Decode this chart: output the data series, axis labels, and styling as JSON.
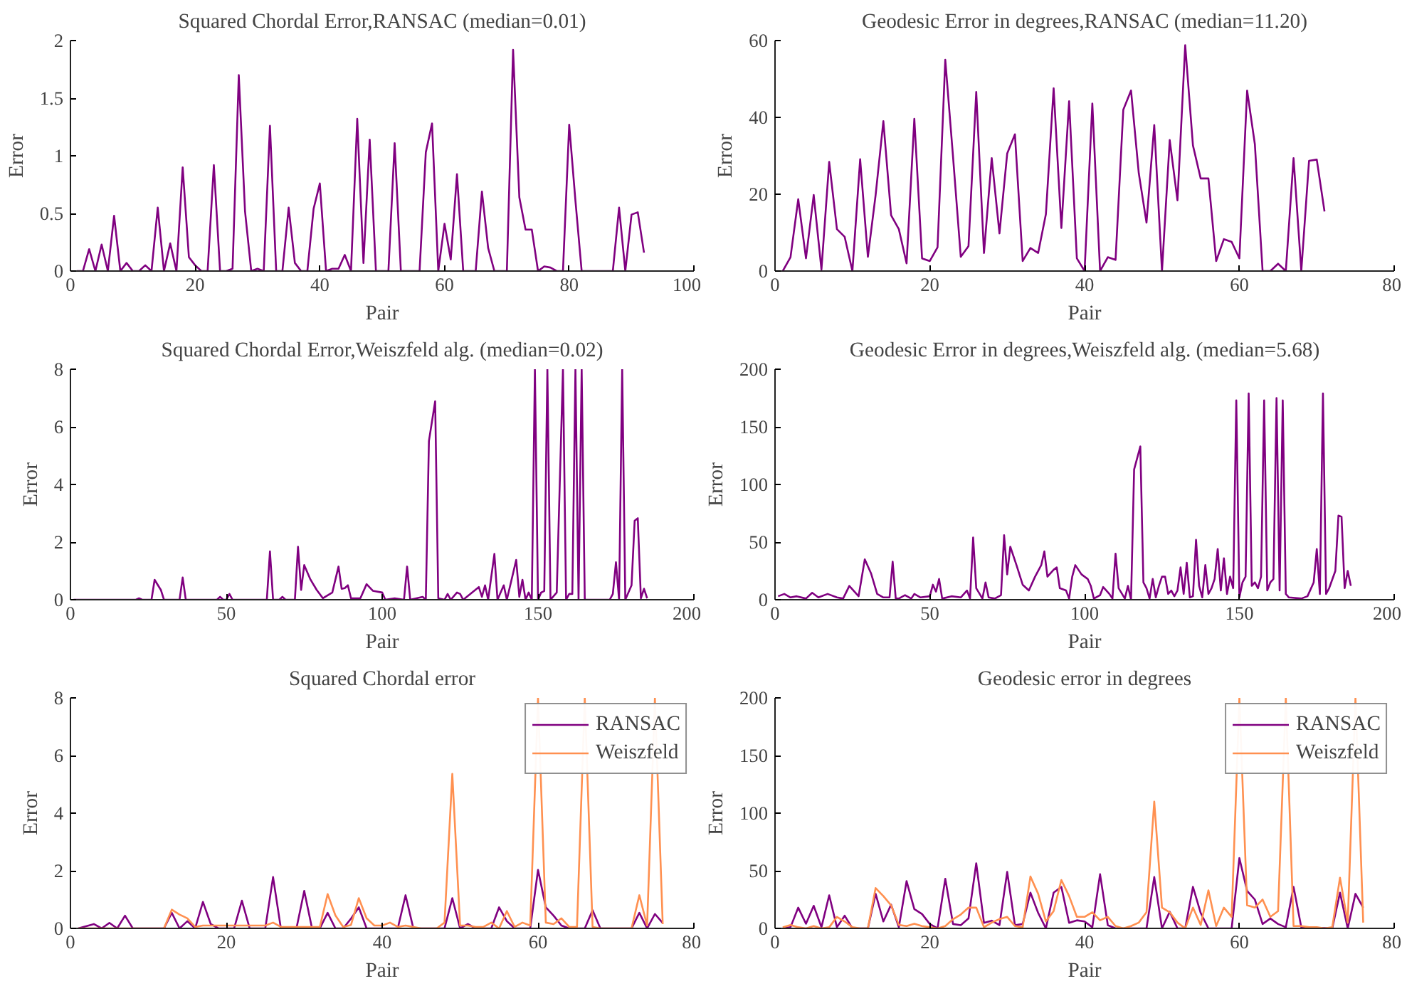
{
  "chart_data": [
    {
      "type": "line",
      "title": "Squared Chordal Error,RANSAC (median=0.01)",
      "xlabel": "Pair",
      "ylabel": "Error",
      "xlim": [
        0,
        100
      ],
      "ylim": [
        0,
        2
      ],
      "xticks": [
        0,
        20,
        40,
        60,
        80,
        100
      ],
      "yticks": [
        0,
        0.5,
        1,
        1.5,
        2
      ],
      "series": [
        {
          "color": "#800080",
          "x": [
            1,
            2,
            3,
            4,
            5,
            6,
            7,
            8,
            9,
            10,
            11,
            12,
            13,
            14,
            15,
            16,
            17,
            18,
            19,
            20,
            21,
            22,
            23,
            24,
            25,
            26,
            27,
            28,
            29,
            30,
            31,
            32,
            33,
            34,
            35,
            36,
            37,
            38,
            39,
            40,
            41,
            42,
            43,
            44,
            45,
            46,
            47,
            48,
            49,
            50,
            51,
            52,
            53,
            54,
            55,
            56,
            57,
            58,
            59,
            60,
            61,
            62,
            63,
            64,
            65,
            66,
            67,
            68,
            69,
            70,
            71,
            72,
            73,
            74,
            75,
            76,
            77,
            78,
            79,
            80,
            81,
            82,
            83,
            84,
            85,
            86,
            87,
            88,
            89,
            90,
            91,
            92
          ],
          "values": [
            0,
            0,
            0.19,
            0,
            0.23,
            0,
            0.48,
            0,
            0.07,
            0,
            0,
            0.05,
            0,
            0.55,
            0,
            0.24,
            0,
            0.9,
            0.12,
            0.05,
            0,
            0,
            0.92,
            0,
            0,
            0.02,
            1.7,
            0.52,
            0,
            0.02,
            0,
            1.26,
            0,
            0,
            0.55,
            0.07,
            0,
            0,
            0.54,
            0.76,
            0,
            0.02,
            0.02,
            0.14,
            0,
            1.32,
            0.07,
            1.14,
            0,
            0,
            0,
            1.11,
            0,
            0,
            0,
            0,
            1.03,
            1.28,
            0,
            0.41,
            0.1,
            0.84,
            0,
            0,
            0,
            0.69,
            0.2,
            0,
            0,
            0,
            1.92,
            0.64,
            0.36,
            0.36,
            0,
            0.04,
            0.03,
            0,
            0,
            1.27,
            0.61,
            0,
            0,
            0,
            0,
            0,
            0,
            0.55,
            0,
            0.49,
            0.51,
            0.16
          ]
        }
      ]
    },
    {
      "type": "line",
      "title": "Geodesic Error in degrees,RANSAC (median=11.20)",
      "xlabel": "Pair",
      "ylabel": "Error",
      "xlim": [
        0,
        80
      ],
      "ylim": [
        0,
        60
      ],
      "xticks": [
        0,
        20,
        40,
        60,
        80
      ],
      "yticks": [
        0,
        20,
        40,
        60
      ],
      "series": [
        {
          "color": "#800080",
          "x": [
            1,
            2,
            3,
            4,
            5,
            6,
            7,
            8,
            9,
            10,
            11,
            12,
            13,
            14,
            15,
            16,
            17,
            18,
            19,
            20,
            21,
            22,
            23,
            24,
            25,
            26,
            27,
            28,
            29,
            30,
            31,
            32,
            33,
            34,
            35,
            36,
            37,
            38,
            39,
            40,
            41,
            42,
            43,
            44,
            45,
            46,
            47,
            48,
            49,
            50,
            51,
            52,
            53,
            54,
            55,
            56,
            57,
            58,
            59,
            60,
            61,
            62,
            63,
            64,
            65,
            66,
            67,
            68,
            69,
            70,
            71
          ],
          "values": [
            0,
            3.6,
            18.7,
            3.3,
            19.8,
            0.4,
            28.4,
            10.9,
            8.9,
            0,
            29.1,
            3.7,
            19.8,
            39,
            14.5,
            10.9,
            2,
            39.6,
            3.3,
            2.6,
            6.2,
            55,
            29.8,
            3.7,
            6.5,
            46.6,
            4.7,
            29.4,
            9.8,
            30.6,
            35.6,
            2.6,
            6,
            4.7,
            14.8,
            47.6,
            11.2,
            44.2,
            3.3,
            0,
            43.6,
            0,
            3.6,
            2.9,
            42,
            47,
            25.5,
            12.6,
            38,
            0,
            34.1,
            18.4,
            58.8,
            32.7,
            24.1,
            24.1,
            2.6,
            8.3,
            7.6,
            3.3,
            47,
            33,
            0,
            0,
            1.9,
            0,
            29.4,
            0,
            28.7,
            29,
            15.5
          ]
        }
      ]
    },
    {
      "type": "line",
      "title": "Squared Chordal Error,Weiszfeld alg. (median=0.02)",
      "xlabel": "Pair",
      "ylabel": "Error",
      "xlim": [
        0,
        200
      ],
      "ylim": [
        0,
        8
      ],
      "xticks": [
        0,
        50,
        100,
        150,
        200
      ],
      "yticks": [
        0,
        2,
        4,
        6,
        8
      ],
      "series": [
        {
          "color": "#800080",
          "x": [
            1,
            21,
            22,
            23,
            26,
            27,
            29,
            30,
            35,
            36,
            37,
            47,
            48,
            49,
            50,
            51,
            52,
            63,
            64,
            65,
            67,
            68,
            69,
            72,
            73,
            74,
            75,
            77,
            79,
            81,
            84,
            86,
            87,
            88,
            89,
            90,
            93,
            95,
            97,
            100,
            101,
            104,
            107,
            108,
            109,
            113,
            114,
            115,
            117,
            118,
            120,
            121,
            122,
            124,
            125,
            126,
            131,
            132,
            133,
            134,
            136,
            137,
            139,
            140,
            143,
            144,
            145,
            146,
            147,
            148,
            149,
            150,
            151,
            152,
            153,
            154,
            156,
            158,
            159,
            160,
            161,
            162,
            163,
            164,
            165,
            173,
            174,
            175,
            176,
            177,
            178,
            180,
            181,
            182,
            183,
            184,
            185
          ],
          "values": [
            0,
            0,
            0.05,
            0,
            0,
            0.69,
            0.34,
            0,
            0,
            0.77,
            0,
            0,
            0.1,
            0,
            0,
            0.2,
            0,
            0,
            1.68,
            0,
            0,
            0.1,
            0,
            0,
            1.84,
            0.34,
            1.2,
            0.7,
            0.34,
            0.05,
            0.25,
            1.15,
            0.38,
            0.4,
            0.5,
            0.05,
            0.05,
            0.54,
            0.31,
            0.25,
            0,
            0.05,
            0,
            1.15,
            0,
            0.1,
            0,
            5.51,
            6.89,
            0.05,
            0,
            0.2,
            0,
            0.25,
            0.2,
            0,
            0.44,
            0.1,
            0.5,
            0,
            1.59,
            0,
            0.5,
            0,
            1.38,
            0.1,
            0.69,
            0,
            0.25,
            0,
            8,
            0,
            0.25,
            0.3,
            8,
            0,
            0.25,
            8,
            0,
            0.2,
            0.2,
            8,
            0,
            8,
            0,
            0,
            0.2,
            1.3,
            0,
            8,
            0,
            0.5,
            2.74,
            2.83,
            0.05,
            0.38,
            0.05
          ]
        }
      ]
    },
    {
      "type": "line",
      "title": "Geodesic Error in degrees,Weiszfeld alg. (median=5.68)",
      "xlabel": "Pair",
      "ylabel": "Error",
      "xlim": [
        0,
        200
      ],
      "ylim": [
        0,
        200
      ],
      "xticks": [
        0,
        50,
        100,
        150,
        200
      ],
      "yticks": [
        0,
        50,
        100,
        150,
        200
      ],
      "series": [
        {
          "color": "#800080",
          "x": [
            1,
            3,
            5,
            7,
            10,
            12,
            14,
            17,
            20,
            22,
            24,
            27,
            29,
            31,
            33,
            35,
            37,
            38,
            39,
            40,
            42,
            44,
            45,
            47,
            50,
            51,
            52,
            53,
            54,
            57,
            60,
            62,
            63,
            64,
            65,
            67,
            68,
            69,
            71,
            73,
            74,
            75,
            76,
            78,
            80,
            82,
            84,
            86,
            87,
            88,
            90,
            91,
            92,
            94,
            95,
            96,
            97,
            99,
            101,
            102,
            103,
            105,
            106,
            108,
            109,
            110,
            111,
            113,
            114,
            115,
            116,
            118,
            119,
            120,
            121,
            122,
            123,
            124,
            125,
            126,
            127,
            128,
            129,
            130,
            131,
            132,
            133,
            134,
            135,
            136,
            137,
            138,
            139,
            140,
            141,
            142,
            143,
            144,
            145,
            146,
            147,
            148,
            149,
            150,
            151,
            152,
            153,
            154,
            155,
            156,
            157,
            158,
            159,
            160,
            161,
            162,
            163,
            164,
            165,
            166,
            170,
            172,
            174,
            175,
            176,
            177,
            178,
            179,
            181,
            182,
            183,
            184,
            185,
            186
          ],
          "values": [
            3,
            5,
            2,
            3,
            1,
            6,
            2,
            5,
            2,
            1,
            12,
            3,
            35,
            23,
            5,
            2,
            2,
            33,
            1,
            1,
            4,
            1,
            5,
            2,
            3,
            13,
            7,
            18,
            1,
            3,
            2,
            8,
            1,
            54,
            10,
            1,
            15,
            2,
            1,
            4,
            56,
            22,
            46,
            30,
            13,
            8,
            20,
            30,
            42,
            20,
            26,
            28,
            10,
            8,
            1,
            20,
            30,
            22,
            18,
            12,
            1,
            4,
            11,
            5,
            1,
            40,
            10,
            1,
            12,
            0,
            113,
            133,
            15,
            10,
            1,
            18,
            2,
            12,
            20,
            20,
            5,
            8,
            3,
            8,
            28,
            5,
            32,
            2,
            3,
            52,
            12,
            2,
            30,
            5,
            10,
            18,
            44,
            8,
            36,
            5,
            20,
            10,
            173,
            2,
            15,
            20,
            179,
            12,
            15,
            10,
            20,
            173,
            8,
            15,
            18,
            175,
            8,
            173,
            5,
            2,
            1,
            3,
            15,
            44,
            5,
            179,
            5,
            10,
            25,
            73,
            72,
            10,
            25,
            12
          ]
        }
      ]
    },
    {
      "type": "line",
      "title": "Squared Chordal error",
      "xlabel": "Pair",
      "ylabel": "Error",
      "xlim": [
        0,
        80
      ],
      "ylim": [
        0,
        8
      ],
      "xticks": [
        0,
        20,
        40,
        60,
        80
      ],
      "yticks": [
        0,
        2,
        4,
        6,
        8
      ],
      "legend": "top right",
      "series": [
        {
          "name": "RANSAC",
          "color": "#800080",
          "x": [
            1,
            3,
            4,
            5,
            6,
            7,
            8,
            9,
            12,
            13,
            14,
            15,
            16,
            17,
            18,
            19,
            21,
            22,
            23,
            25,
            26,
            27,
            29,
            30,
            31,
            32,
            33,
            34,
            35,
            36,
            37,
            38,
            39,
            42,
            43,
            44,
            48,
            49,
            50,
            51,
            52,
            54,
            55,
            56,
            57,
            59,
            60,
            61,
            62,
            63,
            64,
            66,
            67,
            68,
            72,
            73,
            74,
            75,
            76
          ],
          "values": [
            0,
            0.15,
            0,
            0.19,
            0,
            0.44,
            0,
            0,
            0,
            0.54,
            0,
            0.25,
            0,
            0.92,
            0.15,
            0,
            0,
            0.96,
            0,
            0,
            1.78,
            0,
            0,
            1.3,
            0,
            0,
            0.54,
            0,
            0,
            0.34,
            0.73,
            0,
            0,
            0,
            1.15,
            0,
            0,
            1.05,
            0,
            0.15,
            0,
            0,
            0.73,
            0.25,
            0,
            0,
            2.03,
            0.73,
            0.44,
            0.1,
            0,
            0,
            0.63,
            0,
            0,
            0.54,
            0,
            0.5,
            0.19
          ]
        },
        {
          "name": "Weiszfeld",
          "color": "#ff9050",
          "x": [
            1,
            12,
            13,
            14,
            15,
            16,
            17,
            25,
            26,
            27,
            32,
            33,
            34,
            35,
            36,
            37,
            38,
            39,
            40,
            41,
            42,
            43,
            44,
            45,
            47,
            48,
            49,
            50,
            51,
            52,
            53,
            54,
            55,
            56,
            57,
            58,
            59,
            60,
            61,
            62,
            63,
            64,
            65,
            66,
            67,
            68,
            72,
            73,
            74,
            75,
            76
          ],
          "values": [
            0,
            0,
            0.65,
            0.48,
            0.35,
            0.05,
            0.1,
            0.1,
            0.2,
            0.05,
            0.05,
            1.19,
            0.45,
            0.05,
            0.12,
            1.05,
            0.35,
            0.1,
            0.1,
            0.2,
            0.05,
            0.1,
            0.05,
            0,
            0,
            0.2,
            5.36,
            0.1,
            0.1,
            0.05,
            0.05,
            0.2,
            0,
            0.6,
            0.05,
            0.2,
            0.1,
            8,
            0.2,
            0.15,
            0.35,
            0.05,
            0.05,
            8,
            0.05,
            0,
            0,
            1.15,
            0.1,
            8,
            0.15
          ]
        }
      ]
    },
    {
      "type": "line",
      "title": "Geodesic error in degrees",
      "xlabel": "Pair",
      "ylabel": "Error",
      "xlim": [
        0,
        80
      ],
      "ylim": [
        0,
        200
      ],
      "xticks": [
        0,
        20,
        40,
        60,
        80
      ],
      "yticks": [
        0,
        50,
        100,
        150,
        200
      ],
      "legend": "top right",
      "series": [
        {
          "name": "RANSAC",
          "color": "#800080",
          "x": [
            1,
            2,
            3,
            4,
            5,
            6,
            7,
            8,
            9,
            10,
            12,
            13,
            14,
            15,
            16,
            17,
            18,
            19,
            20,
            21,
            22,
            23,
            24,
            25,
            26,
            27,
            28,
            29,
            30,
            31,
            32,
            33,
            34,
            35,
            36,
            37,
            38,
            39,
            40,
            41,
            42,
            43,
            44,
            48,
            49,
            50,
            51,
            52,
            53,
            54,
            55,
            56,
            59,
            60,
            61,
            62,
            63,
            64,
            65,
            66,
            67,
            68,
            72,
            73,
            74,
            75,
            76
          ],
          "values": [
            0,
            1,
            18,
            4,
            19.6,
            1,
            28.7,
            1,
            11,
            0,
            0,
            30,
            6,
            20.6,
            1,
            41,
            16.7,
            12.4,
            3.8,
            0,
            43,
            3.8,
            2.8,
            8.6,
            56.5,
            4.8,
            6.7,
            2.8,
            49,
            2.8,
            3.8,
            31,
            13.4,
            0,
            31,
            36,
            4.8,
            7,
            6,
            1,
            47,
            2.8,
            0,
            0,
            44.5,
            0,
            14.4,
            0,
            0,
            36,
            13.4,
            0,
            0,
            61,
            32.5,
            25,
            3.8,
            8.6,
            3.8,
            1,
            36,
            1,
            0,
            31,
            0,
            30,
            18
          ]
        },
        {
          "name": "Weiszfeld",
          "color": "#ff9050",
          "x": [
            1,
            2,
            3,
            4,
            5,
            6,
            7,
            8,
            9,
            10,
            11,
            12,
            13,
            14,
            15,
            16,
            17,
            18,
            19,
            20,
            21,
            22,
            23,
            24,
            25,
            26,
            27,
            28,
            29,
            30,
            31,
            32,
            33,
            34,
            35,
            36,
            37,
            38,
            39,
            40,
            41,
            42,
            43,
            44,
            45,
            46,
            47,
            48,
            49,
            50,
            51,
            52,
            53,
            54,
            55,
            56,
            57,
            58,
            59,
            60,
            61,
            62,
            63,
            64,
            65,
            66,
            67,
            68,
            69,
            70,
            71,
            72,
            73,
            74,
            75,
            76
          ],
          "values": [
            1,
            3,
            1,
            0,
            2,
            0,
            1,
            10,
            6,
            1,
            0,
            0,
            35,
            28,
            20,
            3,
            2,
            4,
            2,
            1,
            0,
            2,
            8,
            12,
            18,
            18,
            1,
            5,
            8,
            10,
            2,
            1,
            45,
            30,
            6,
            15,
            42,
            28,
            10,
            10,
            14,
            7,
            10,
            2,
            0,
            2,
            5,
            14,
            110,
            18,
            14,
            5,
            0,
            18,
            3,
            33,
            2,
            18,
            10,
            200,
            20,
            18,
            25,
            10,
            15,
            200,
            2,
            2,
            1,
            1,
            0,
            1,
            44,
            5,
            200,
            5
          ]
        }
      ]
    }
  ]
}
